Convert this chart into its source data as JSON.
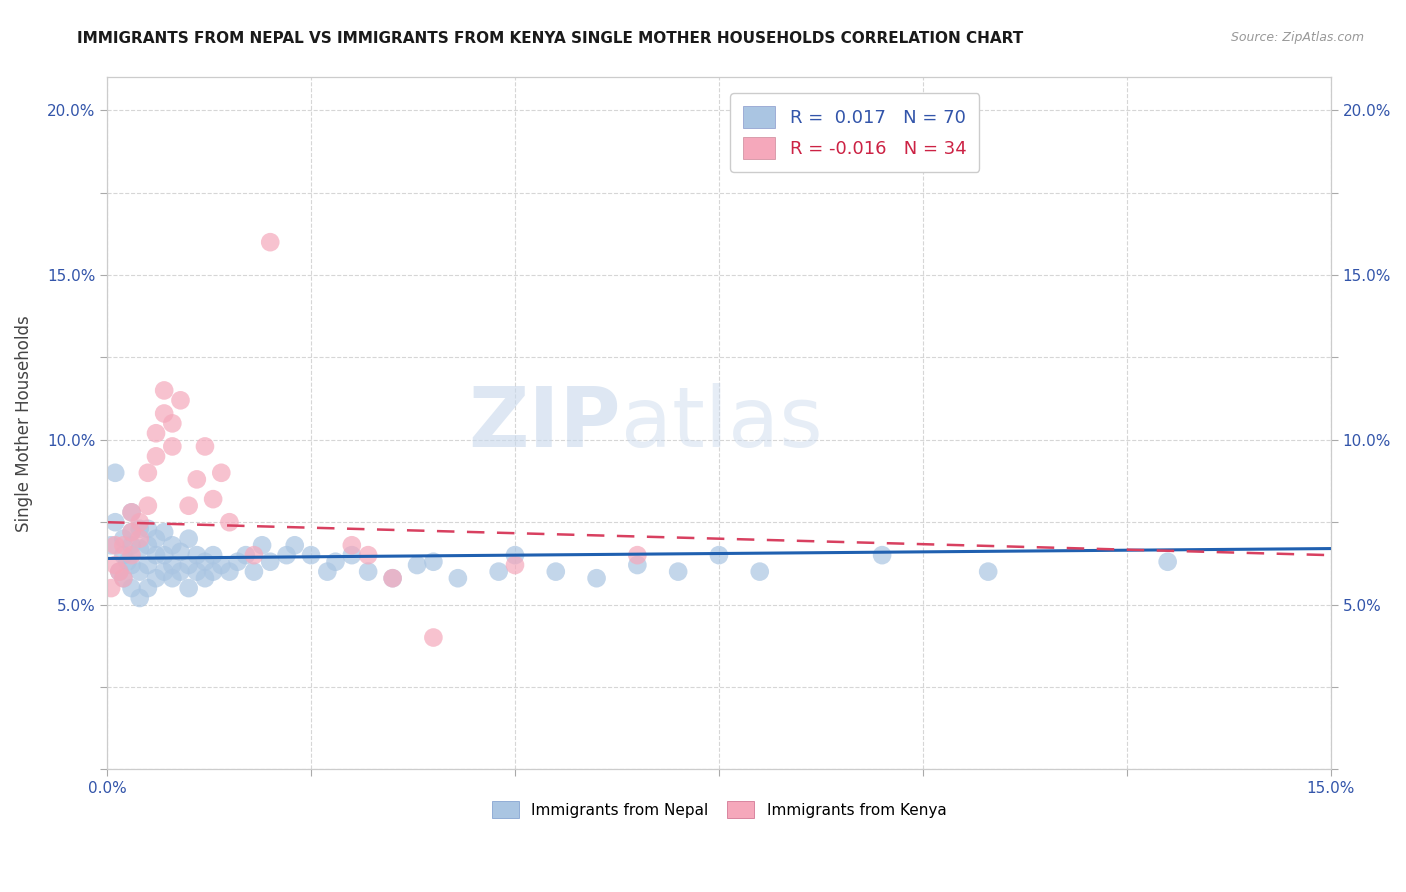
{
  "title": "IMMIGRANTS FROM NEPAL VS IMMIGRANTS FROM KENYA SINGLE MOTHER HOUSEHOLDS CORRELATION CHART",
  "source": "Source: ZipAtlas.com",
  "ylabel": "Single Mother Households",
  "xlim": [
    0.0,
    0.15
  ],
  "ylim": [
    0.0,
    0.21
  ],
  "xticks": [
    0.0,
    0.025,
    0.05,
    0.075,
    0.1,
    0.125,
    0.15
  ],
  "xticklabels": [
    "0.0%",
    "",
    "",
    "",
    "",
    "",
    "15.0%"
  ],
  "yticks": [
    0.0,
    0.025,
    0.05,
    0.075,
    0.1,
    0.125,
    0.15,
    0.175,
    0.2
  ],
  "yticklabels": [
    "",
    "",
    "5.0%",
    "",
    "10.0%",
    "",
    "15.0%",
    "",
    "20.0%"
  ],
  "nepal_R": 0.017,
  "nepal_N": 70,
  "kenya_R": -0.016,
  "kenya_N": 34,
  "nepal_color": "#aac5e2",
  "kenya_color": "#f5a8bb",
  "nepal_line_color": "#2060b0",
  "kenya_line_color": "#d84060",
  "nepal_x": [
    0.0005,
    0.001,
    0.001,
    0.0015,
    0.002,
    0.002,
    0.002,
    0.0025,
    0.003,
    0.003,
    0.003,
    0.003,
    0.003,
    0.004,
    0.004,
    0.004,
    0.004,
    0.005,
    0.005,
    0.005,
    0.005,
    0.006,
    0.006,
    0.006,
    0.007,
    0.007,
    0.007,
    0.008,
    0.008,
    0.008,
    0.009,
    0.009,
    0.01,
    0.01,
    0.01,
    0.011,
    0.011,
    0.012,
    0.012,
    0.013,
    0.013,
    0.014,
    0.015,
    0.016,
    0.017,
    0.018,
    0.019,
    0.02,
    0.022,
    0.023,
    0.025,
    0.027,
    0.028,
    0.03,
    0.032,
    0.035,
    0.038,
    0.04,
    0.043,
    0.048,
    0.05,
    0.055,
    0.06,
    0.065,
    0.07,
    0.075,
    0.08,
    0.095,
    0.108,
    0.13
  ],
  "nepal_y": [
    0.068,
    0.075,
    0.09,
    0.06,
    0.058,
    0.065,
    0.07,
    0.063,
    0.055,
    0.062,
    0.068,
    0.072,
    0.078,
    0.052,
    0.06,
    0.067,
    0.073,
    0.055,
    0.062,
    0.068,
    0.073,
    0.058,
    0.065,
    0.07,
    0.06,
    0.065,
    0.072,
    0.058,
    0.062,
    0.068,
    0.06,
    0.066,
    0.055,
    0.062,
    0.07,
    0.06,
    0.065,
    0.058,
    0.063,
    0.06,
    0.065,
    0.062,
    0.06,
    0.063,
    0.065,
    0.06,
    0.068,
    0.063,
    0.065,
    0.068,
    0.065,
    0.06,
    0.063,
    0.065,
    0.06,
    0.058,
    0.062,
    0.063,
    0.058,
    0.06,
    0.065,
    0.06,
    0.058,
    0.062,
    0.06,
    0.065,
    0.06,
    0.065,
    0.06,
    0.063
  ],
  "kenya_x": [
    0.0005,
    0.001,
    0.001,
    0.0015,
    0.002,
    0.002,
    0.003,
    0.003,
    0.003,
    0.004,
    0.004,
    0.005,
    0.005,
    0.006,
    0.006,
    0.007,
    0.007,
    0.008,
    0.008,
    0.009,
    0.01,
    0.011,
    0.012,
    0.013,
    0.014,
    0.015,
    0.018,
    0.02,
    0.03,
    0.032,
    0.035,
    0.04,
    0.05,
    0.065
  ],
  "kenya_y": [
    0.055,
    0.062,
    0.068,
    0.06,
    0.058,
    0.068,
    0.065,
    0.072,
    0.078,
    0.07,
    0.075,
    0.08,
    0.09,
    0.095,
    0.102,
    0.108,
    0.115,
    0.098,
    0.105,
    0.112,
    0.08,
    0.088,
    0.098,
    0.082,
    0.09,
    0.075,
    0.065,
    0.16,
    0.068,
    0.065,
    0.058,
    0.04,
    0.062,
    0.065
  ],
  "watermark_zip": "ZIP",
  "watermark_atlas": "atlas",
  "legend_nepal_label": "R =  0.017   N = 70",
  "legend_kenya_label": "R = -0.016   N = 34",
  "title_fontsize": 11,
  "axis_label_fontsize": 12,
  "tick_fontsize": 11,
  "legend_fontsize": 13
}
